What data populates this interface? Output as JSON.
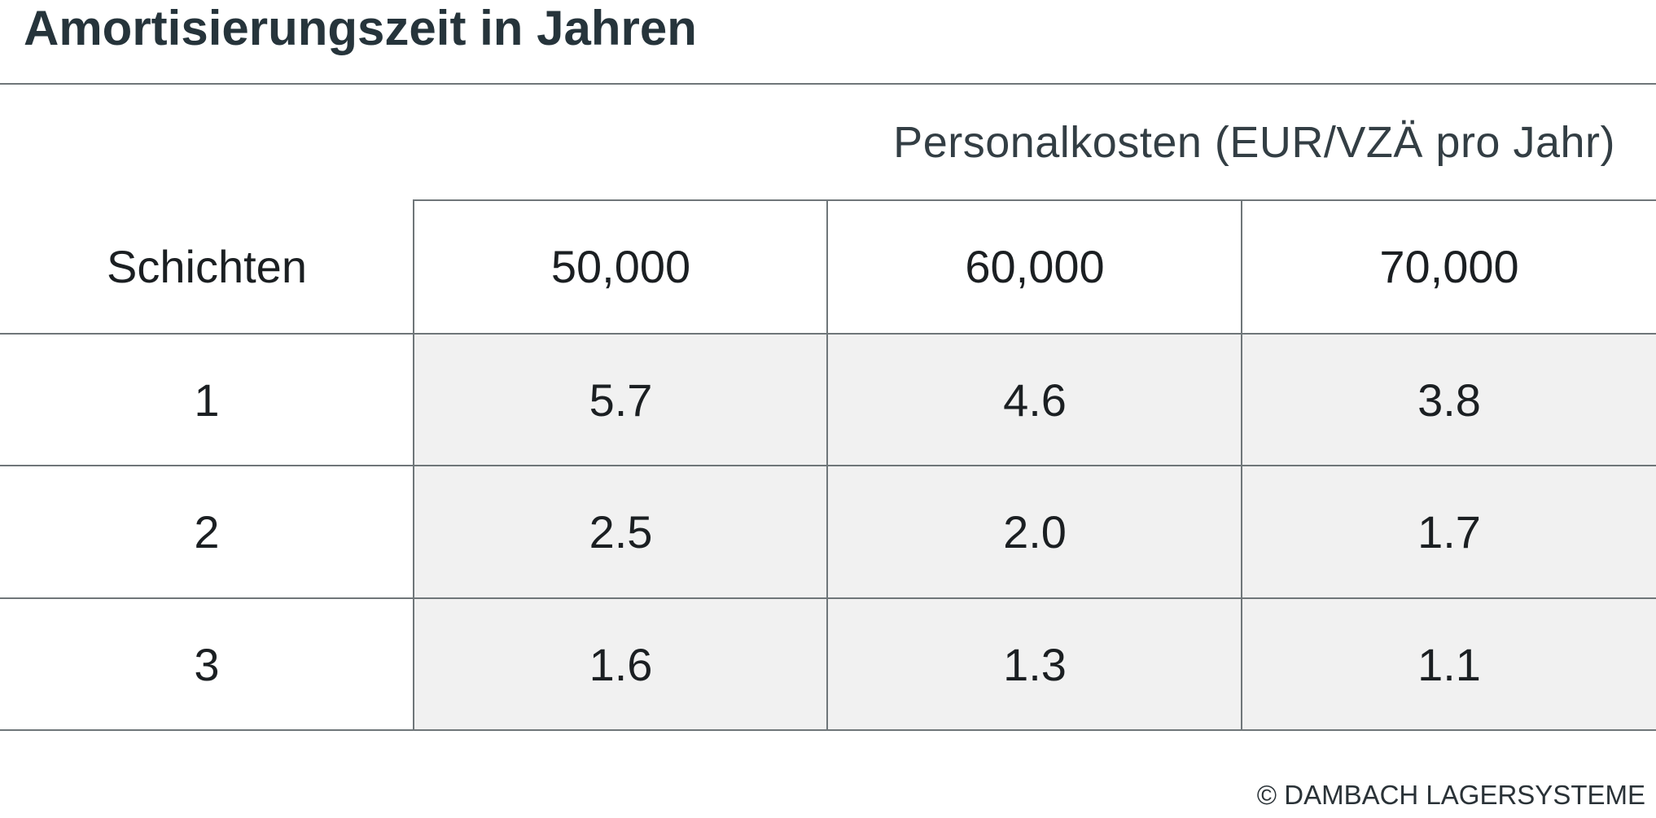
{
  "title": "Amortisierungszeit in Jahren",
  "group_header": "Personalkosten (EUR/VZÄ pro Jahr)",
  "table": {
    "row_header_label": "Schichten",
    "columns": [
      "50,000",
      "60,000",
      "70,000"
    ],
    "rows": [
      {
        "label": "1",
        "values": [
          "5.7",
          "4.6",
          "3.8"
        ]
      },
      {
        "label": "2",
        "values": [
          "2.5",
          "2.0",
          "1.7"
        ]
      },
      {
        "label": "3",
        "values": [
          "1.6",
          "1.3",
          "1.1"
        ]
      }
    ]
  },
  "copyright": "© DAMBACH LAGERSYSTEME",
  "colors": {
    "text": "#1b1f22",
    "title": "#26343b",
    "rule": "#6f7679",
    "shaded_cell": "#f1f1f1"
  }
}
